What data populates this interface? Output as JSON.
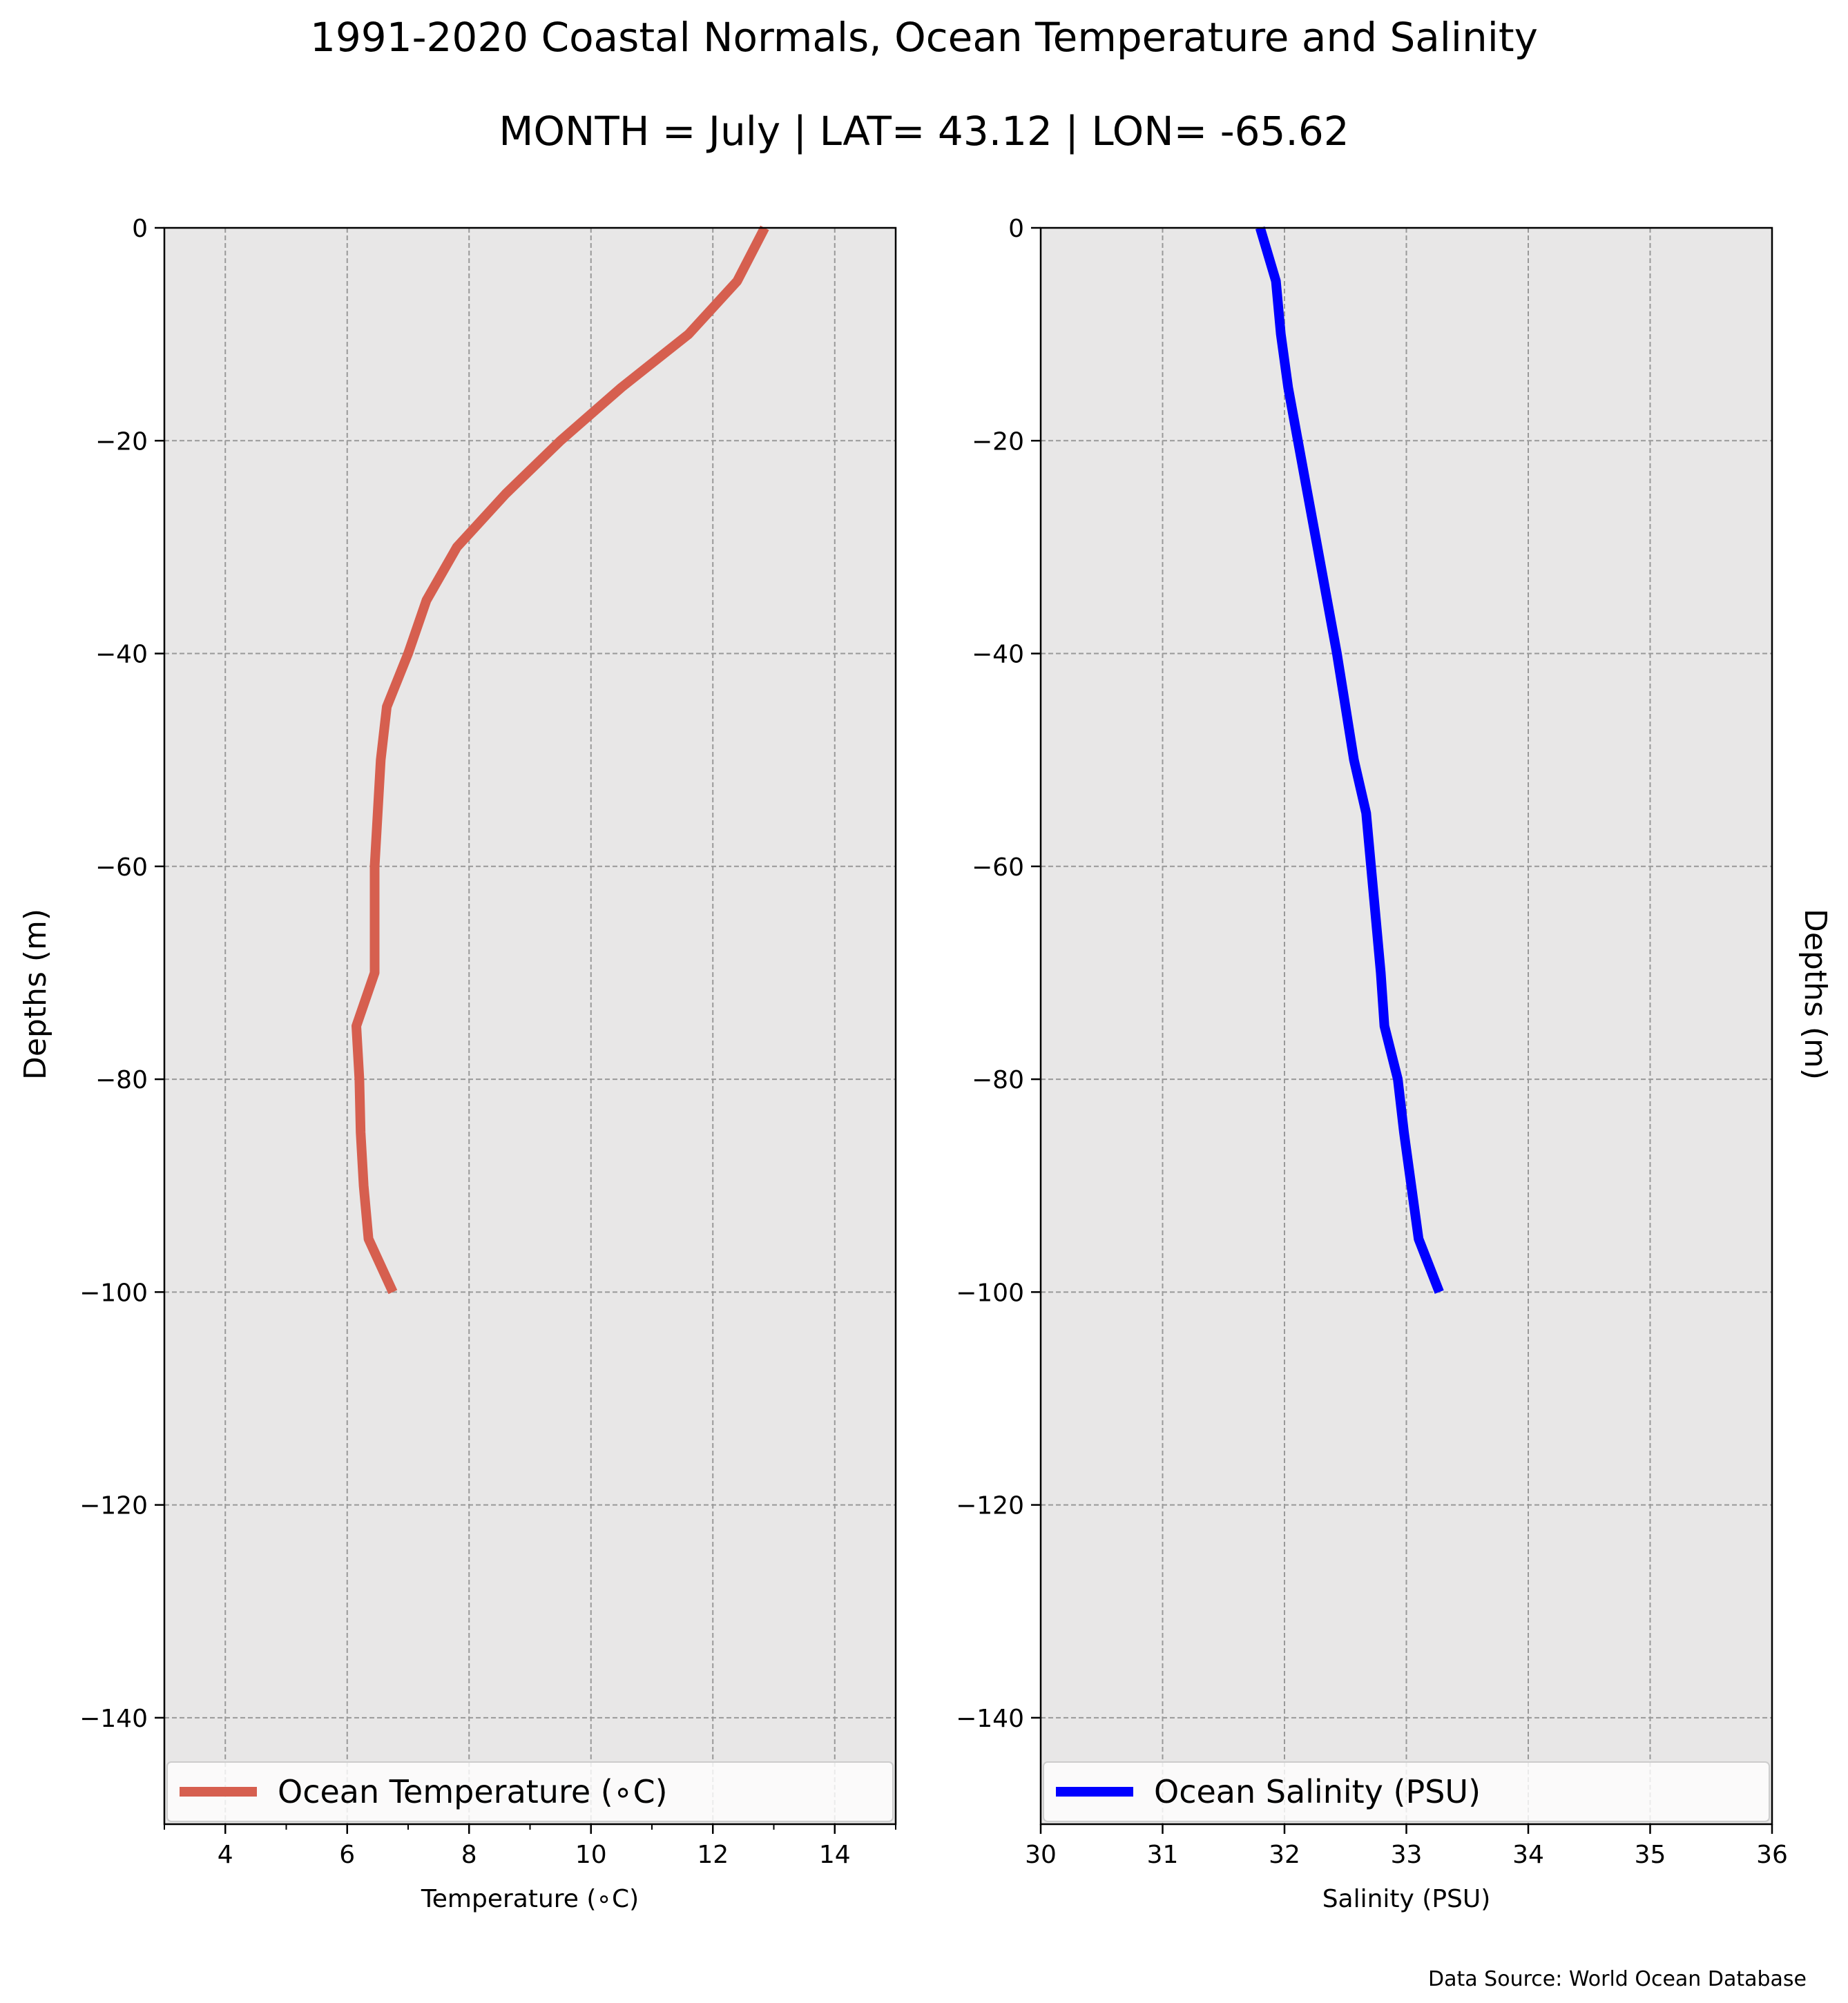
{
  "chart_data": {
    "type": "line",
    "title": "1991-2020 Coastal Normals, Ocean Temperature and Salinity",
    "subtitle": "MONTH = July | LAT= 43.12 | LON= -65.62",
    "source": "Data Source: World Ocean Database",
    "ylabel": "Depths (m)",
    "ylim": [
      -150,
      0
    ],
    "yticks": [
      0,
      -20,
      -40,
      -60,
      -80,
      -100,
      -120,
      -140
    ],
    "ytick_labels": [
      "0",
      "−20",
      "−40",
      "−60",
      "−80",
      "−100",
      "−120",
      "−140"
    ],
    "grid": true,
    "legend_placement": "bottom",
    "panels": [
      {
        "id": "temperature",
        "xlabel": "Temperature (∘C)",
        "xlim": [
          3,
          15
        ],
        "xticks": [
          4,
          6,
          8,
          10,
          12,
          14
        ],
        "xtick_labels": [
          "4",
          "6",
          "8",
          "10",
          "12",
          "14"
        ],
        "minor_xticks": [
          3,
          5,
          7,
          9,
          11,
          13,
          15
        ],
        "color": "#d65f4f",
        "series": [
          {
            "name": "Ocean Temperature (∘C)",
            "x": [
              12.85,
              12.4,
              11.6,
              10.5,
              9.5,
              8.6,
              7.8,
              7.3,
              7.0,
              6.65,
              6.55,
              6.5,
              6.45,
              6.45,
              6.45,
              6.15,
              6.2,
              6.22,
              6.27,
              6.35,
              6.75
            ],
            "y": [
              0,
              -5,
              -10,
              -15,
              -20,
              -25,
              -30,
              -35,
              -40,
              -45,
              -50,
              -55,
              -60,
              -65,
              -70,
              -75,
              -80,
              -85,
              -90,
              -95,
              -100
            ]
          }
        ]
      },
      {
        "id": "salinity",
        "xlabel": "Salinity (PSU)",
        "xlim": [
          30,
          36
        ],
        "xticks": [
          30,
          31,
          32,
          33,
          34,
          35,
          36
        ],
        "xtick_labels": [
          "30",
          "31",
          "32",
          "33",
          "34",
          "35",
          "36"
        ],
        "minor_xticks": [],
        "color": "#0000ff",
        "series": [
          {
            "name": "Ocean Salinity (PSU)",
            "x": [
              31.8,
              31.93,
              31.97,
              32.03,
              32.11,
              32.19,
              32.27,
              32.35,
              32.43,
              32.5,
              32.57,
              32.67,
              32.71,
              32.75,
              32.79,
              32.82,
              32.93,
              32.98,
              33.04,
              33.1,
              33.27
            ],
            "y": [
              0,
              -5,
              -10,
              -15,
              -20,
              -25,
              -30,
              -35,
              -40,
              -45,
              -50,
              -55,
              -60,
              -65,
              -70,
              -75,
              -80,
              -85,
              -90,
              -95,
              -100
            ]
          }
        ]
      }
    ]
  }
}
